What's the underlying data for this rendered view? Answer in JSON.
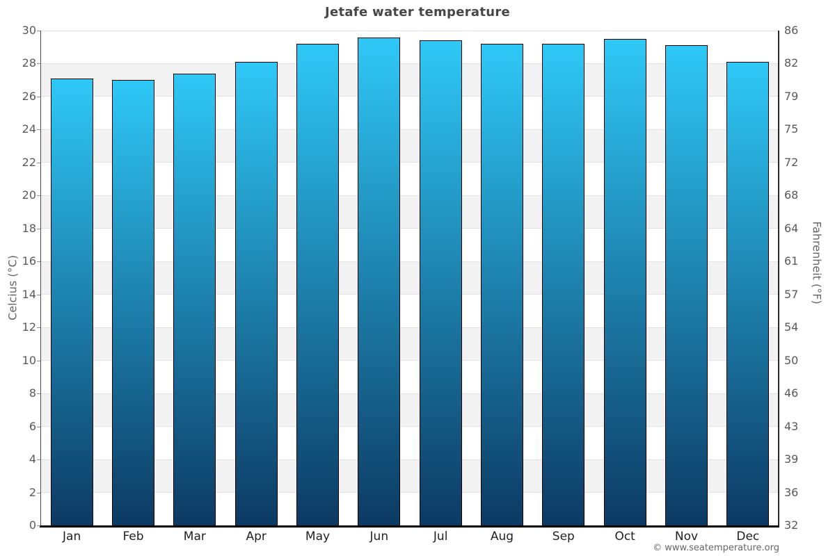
{
  "chart_data": {
    "type": "bar",
    "title": "Jetafe water temperature",
    "categories": [
      "Jan",
      "Feb",
      "Mar",
      "Apr",
      "May",
      "Jun",
      "Jul",
      "Aug",
      "Sep",
      "Oct",
      "Nov",
      "Dec"
    ],
    "values": [
      27.1,
      27.0,
      27.4,
      28.1,
      29.2,
      29.6,
      29.4,
      29.2,
      29.2,
      29.5,
      29.1,
      28.1
    ],
    "ylabel_left": "Celcius (°C)",
    "ylabel_right": "Fahrenheit (°F)",
    "ylim": [
      0,
      30
    ],
    "y_ticks_celsius": [
      0,
      2,
      4,
      6,
      8,
      10,
      12,
      14,
      16,
      18,
      20,
      22,
      24,
      26,
      28,
      30
    ],
    "y_ticks_fahrenheit": [
      32,
      36,
      39,
      43,
      46,
      50,
      54,
      57,
      61,
      64,
      68,
      72,
      75,
      79,
      82,
      86
    ],
    "legend": "none",
    "grid": "horizontal alternating bands every 2°C",
    "colors": {
      "bar_gradient_top": "#2fc8f7",
      "bar_gradient_bottom": "#0c3a63",
      "bar_border": "#000000",
      "band_shade": "#f2f2f2",
      "gridline": "#e2e2e2",
      "title_text": "#474747",
      "tick_text": "#595959"
    }
  },
  "footer": {
    "copyright": "© www.seatemperature.org"
  }
}
